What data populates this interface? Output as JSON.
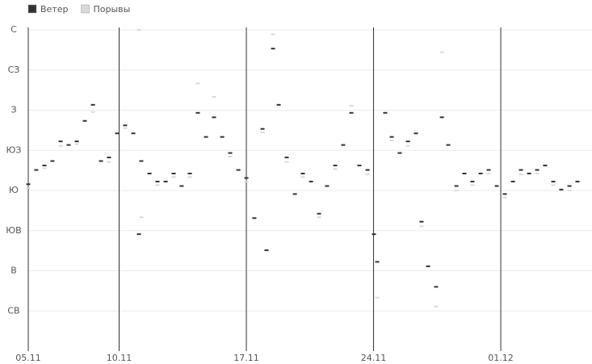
{
  "chart_data": {
    "type": "scatter",
    "series": [
      {
        "name": "Ветер",
        "color": "#333333",
        "x": [
          0,
          0.44,
          0.89,
          1.33,
          1.78,
          2.22,
          2.67,
          3.11,
          3.56,
          4,
          4.44,
          4.89,
          5.33,
          5.78,
          6.09,
          6.22,
          6.67,
          7.11,
          7.56,
          8,
          8.44,
          8.89,
          9.33,
          9.78,
          10.22,
          10.67,
          11.11,
          11.56,
          12,
          12.44,
          12.89,
          13.11,
          13.47,
          13.78,
          14.22,
          14.67,
          15.11,
          15.56,
          16,
          16.44,
          16.89,
          17.33,
          17.78,
          18.22,
          18.67,
          19.02,
          19.2,
          19.64,
          20,
          20.44,
          20.89,
          21.33,
          21.64,
          22,
          22.44,
          22.76,
          23.11,
          23.56,
          24,
          24.44,
          24.89,
          25.33,
          25.78,
          26.22,
          26.67,
          27.11,
          27.56,
          28,
          28.44,
          28.89,
          29.33,
          29.78,
          30.22
        ],
        "values": [
          187,
          203,
          208,
          213,
          235,
          231,
          235,
          258,
          276,
          213,
          217,
          244,
          253,
          244,
          131,
          213,
          199,
          190,
          190,
          199,
          185,
          199,
          267,
          240,
          262,
          240,
          222,
          203,
          194,
          149,
          249,
          113,
          339,
          276,
          217,
          176,
          199,
          190,
          154,
          185,
          208,
          231,
          267,
          208,
          203,
          131,
          100,
          267,
          240,
          222,
          235,
          244,
          145,
          95,
          72,
          262,
          231,
          185,
          199,
          190,
          199,
          203,
          185,
          176,
          190,
          203,
          199,
          203,
          208,
          190,
          181,
          185,
          190
        ]
      },
      {
        "name": "Порывы",
        "color": "#d9d9d9",
        "x": [
          0,
          0.89,
          1.78,
          2.67,
          3.56,
          4.44,
          5.33,
          6.09,
          6.22,
          7.11,
          8,
          8.89,
          9.33,
          10.22,
          11.11,
          12,
          12.89,
          13.47,
          14.22,
          15.11,
          16,
          16.89,
          17.78,
          18.67,
          19.2,
          20,
          20.89,
          21.64,
          22.44,
          22.76,
          23.56,
          24.44,
          25.33,
          26.22,
          27.11,
          28,
          28.89,
          29.78
        ],
        "values": [
          183,
          205,
          230,
          232,
          268,
          212,
          250,
          360,
          150,
          186,
          195,
          195,
          300,
          285,
          218,
          190,
          245,
          355,
          212,
          195,
          150,
          204,
          275,
          198,
          60,
          236,
          230,
          140,
          50,
          335,
          180,
          186,
          199,
          172,
          198,
          199,
          186,
          180
        ]
      }
    ],
    "xlim": [
      0,
      31.02
    ],
    "xticks": [
      {
        "value": 0,
        "label": "05.11"
      },
      {
        "value": 5,
        "label": "10.11"
      },
      {
        "value": 12,
        "label": "17.11"
      },
      {
        "value": 19,
        "label": "24.11"
      },
      {
        "value": 26,
        "label": "01.12"
      }
    ],
    "ylim": [
      0,
      360
    ],
    "yticks": [
      {
        "value": 360,
        "label": "С"
      },
      {
        "value": 315,
        "label": "СЗ"
      },
      {
        "value": 270,
        "label": "З"
      },
      {
        "value": 225,
        "label": "ЮЗ"
      },
      {
        "value": 180,
        "label": "Ю"
      },
      {
        "value": 135,
        "label": "ЮВ"
      },
      {
        "value": 90,
        "label": "В"
      },
      {
        "value": 45,
        "label": "СВ"
      }
    ],
    "grid": true
  }
}
